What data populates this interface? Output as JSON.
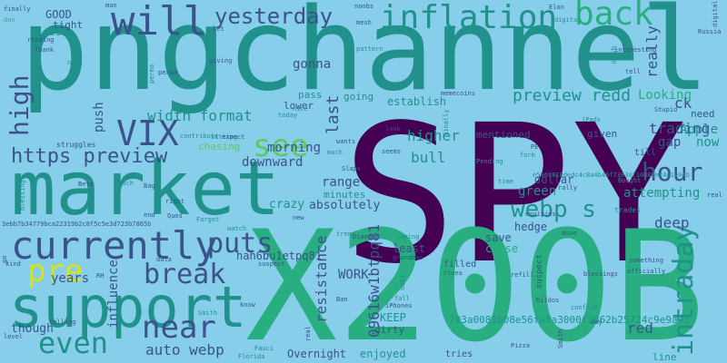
{
  "palette": {
    "background": "#87ceeb",
    "dark_purple": "#440154",
    "deep_blue": "#3b528b",
    "teal": "#21918c",
    "green": "#28ae80",
    "light_green": "#5ec962",
    "yellow": "#d8e219"
  },
  "words": [
    "SPY",
    "X200B",
    "pngchannel",
    "market",
    "support",
    "currently",
    "will",
    "inflation",
    "back",
    "yesterday",
    "hour",
    "see",
    "https preview",
    "VIX",
    "high",
    "puts",
    "break",
    "even",
    "near",
    "pre",
    "intraday",
    "webp s",
    "auto webp",
    "width format",
    "preview redd",
    "trading",
    "morning",
    "gonna",
    "downward",
    "range",
    "resistance",
    "last",
    "WORK",
    "09616w1btpq81",
    "hah6bu1etpq81",
    "green",
    "higher",
    "bull",
    "really",
    "ck",
    "Looking",
    "Apple",
    "now",
    "gap",
    "deep",
    "attempting",
    "red",
    "minutes",
    "absolutely",
    "crazy",
    "lower",
    "pass",
    "going",
    "establish",
    "least",
    "save",
    "close",
    "hedge",
    "dollar",
    "years",
    "GOOD",
    "tight",
    "us",
    "low",
    "though",
    "enjoyed",
    "Overnight",
    "push",
    "dirty",
    "KEEP",
    "793a0081b08e56fafa3000f2862b25724c9e9a93",
    "tries",
    "till",
    "need",
    "given",
    "mentioned",
    "trades",
    "chasing",
    "e59df810dedc4c8a4b46f7383df10888ec4e1e04b",
    "3ebb7b34779bca22319b2c8f5c5e3d723b7865b",
    "nothing",
    "go",
    "line",
    "influence",
    "filled",
    "memecoins",
    "dropped",
    "finally",
    "don",
    "reading",
    "Thank",
    "nfts",
    "minimum",
    "perma",
    "let",
    "giving",
    "man",
    "Elon",
    "digital",
    "Russia",
    "noobs",
    "mesh",
    "pattern",
    "Pattinson",
    "tell",
    "interesting",
    "iPads",
    "Stupid",
    "form",
    "rally",
    "may",
    "Bag",
    "Slaps",
    "look",
    "seems",
    "much",
    "wants",
    "Diamond",
    "grandmas",
    "clues",
    "Ban",
    "iPhones",
    "Dildos",
    "confirm",
    "JPow",
    "Pizza",
    "telling",
    "Smith",
    "level",
    "kind",
    "RH",
    "Bets",
    "reach",
    "right",
    "end",
    "Ques",
    "Forget",
    "data",
    "suspect",
    "Florida",
    "Fauci",
    "watch",
    "fall",
    "NQ",
    "refill",
    "blessings",
    "officially",
    "something",
    "day",
    "move",
    "equities",
    "struggles",
    "Algos",
    "sitting",
    "contribute",
    "expect",
    "today",
    "nice",
    "Pending",
    "real",
    "Bought",
    "trend",
    "coming",
    "know",
    "retest",
    "new",
    "PE",
    "time"
  ]
}
